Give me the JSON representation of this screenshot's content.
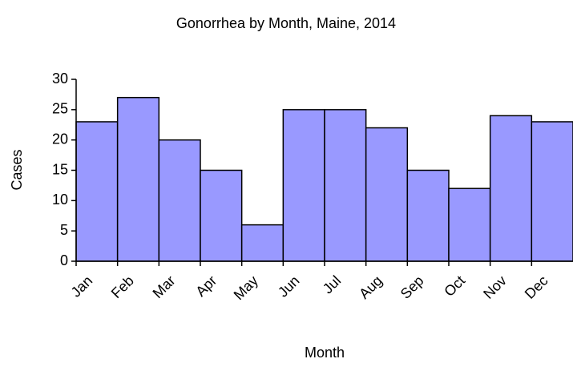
{
  "chart_data": {
    "type": "bar",
    "title": "Gonorrhea by Month, Maine, 2014",
    "x_label": "Month",
    "y_label": "Cases",
    "categories": [
      "Jan",
      "Feb",
      "Mar",
      "Apr",
      "May",
      "Jun",
      "Jul",
      "Aug",
      "Sep",
      "Oct",
      "Nov",
      "Dec"
    ],
    "values": [
      23,
      27,
      20,
      15,
      6,
      25,
      25,
      22,
      15,
      12,
      24,
      23
    ],
    "color": "#9999ff",
    "ylim": [
      0,
      30
    ],
    "yticks": [
      0,
      5,
      10,
      15,
      20,
      25,
      30
    ],
    "grid": false
  }
}
